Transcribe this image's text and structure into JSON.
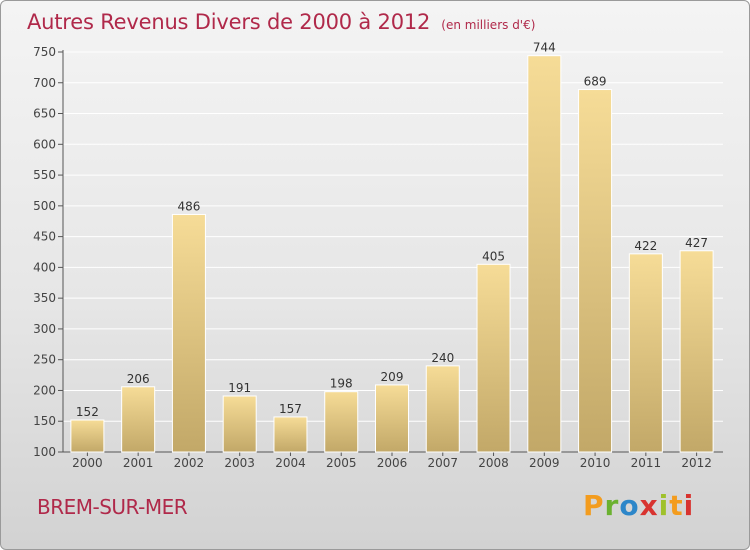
{
  "header": {
    "title": "Autres Revenus Divers de 2000 à 2012",
    "unit": "(en milliers d'€)"
  },
  "footer": {
    "town": "BREM-SUR-MER",
    "brand_letters": [
      "P",
      "r",
      "o",
      "x",
      "i",
      "t",
      "i"
    ]
  },
  "colors": {
    "title": "#b0294a",
    "bar_light": "#f6dc97",
    "bar_dark": "#c2a868",
    "grid": "#ffffff"
  },
  "chart_data": {
    "type": "bar",
    "title": "Autres Revenus Divers de 2000 à 2012",
    "xlabel": "",
    "ylabel": "",
    "ylim": [
      100,
      750
    ],
    "yticks": [
      100,
      150,
      200,
      250,
      300,
      350,
      400,
      450,
      500,
      550,
      600,
      650,
      700,
      750
    ],
    "grid": true,
    "categories": [
      "2000",
      "2001",
      "2002",
      "2003",
      "2004",
      "2005",
      "2006",
      "2007",
      "2008",
      "2009",
      "2010",
      "2011",
      "2012"
    ],
    "values": [
      152,
      206,
      486,
      191,
      157,
      198,
      209,
      240,
      405,
      744,
      689,
      422,
      427
    ]
  }
}
